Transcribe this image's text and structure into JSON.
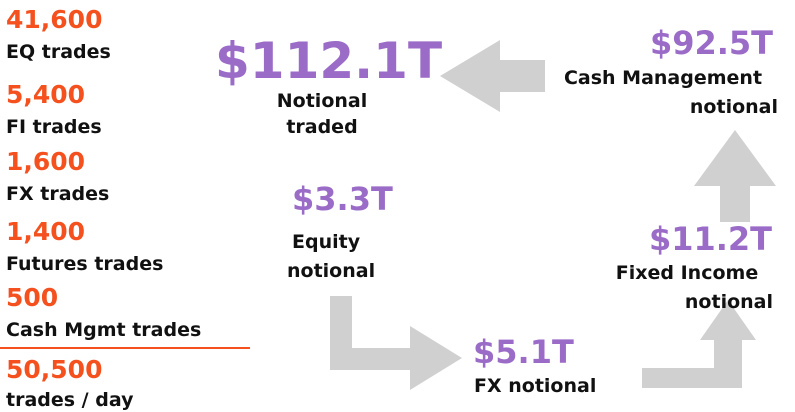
{
  "trade_counts": [
    {
      "value": "41,600",
      "label": "EQ trades"
    },
    {
      "value": "5,400",
      "label": "FI trades"
    },
    {
      "value": "1,600",
      "label": "FX trades"
    },
    {
      "value": "1,400",
      "label": "Futures  trades"
    },
    {
      "value": "500",
      "label": "Cash Mgmt trades"
    }
  ],
  "total": {
    "value": "50,500",
    "label": "trades / day"
  },
  "notionals": [
    {
      "value": "$112.1T",
      "lines": [
        "Notional",
        "traded"
      ]
    },
    {
      "value": "$92.5T",
      "lines": [
        "Cash Management",
        "notional"
      ]
    },
    {
      "value": "$3.3T",
      "lines": [
        "Equity",
        "notional"
      ]
    },
    {
      "value": "$11.2T",
      "lines": [
        "Fixed Income",
        "notional"
      ]
    },
    {
      "value": "$5.1T",
      "lines": [
        "FX notional"
      ]
    }
  ]
}
